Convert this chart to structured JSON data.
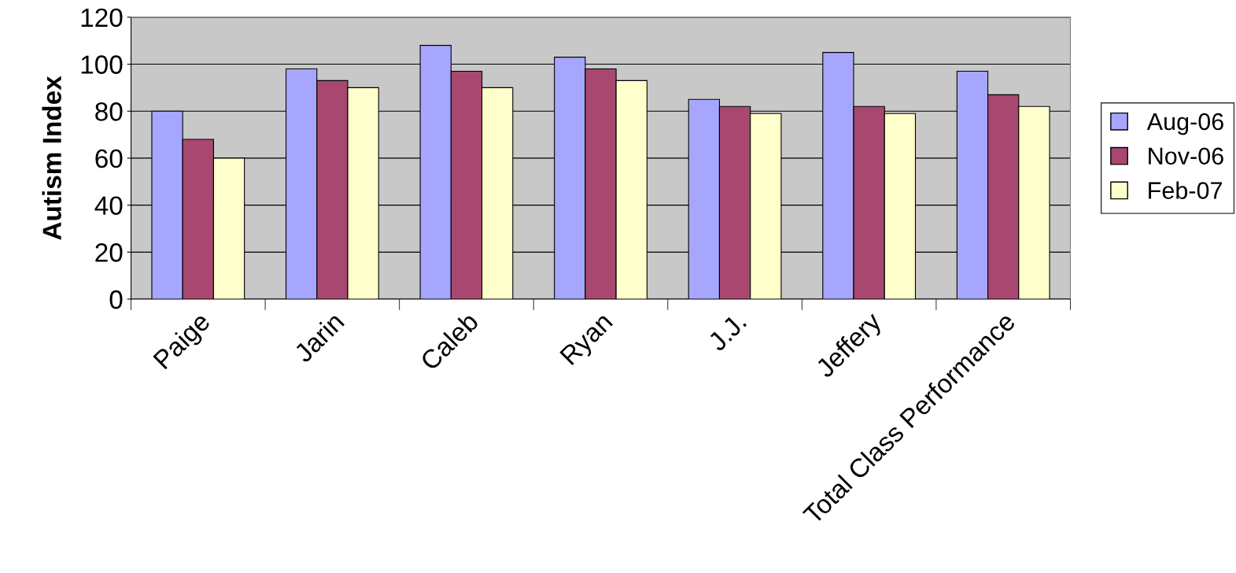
{
  "chart_data": {
    "type": "bar",
    "ylabel": "Autism Index",
    "categories": [
      "Paige",
      "Jarin",
      "Caleb",
      "Ryan",
      "J.J.",
      "Jeffery",
      "Total Class Performance"
    ],
    "series": [
      {
        "name": "Aug-06",
        "color": "#a6a6ff",
        "values": [
          80,
          98,
          108,
          103,
          85,
          105,
          97
        ]
      },
      {
        "name": "Nov-06",
        "color": "#a8476f",
        "values": [
          68,
          93,
          97,
          98,
          82,
          82,
          87
        ]
      },
      {
        "name": "Feb-07",
        "color": "#ffffcc",
        "values": [
          60,
          90,
          90,
          93,
          79,
          79,
          82
        ]
      }
    ],
    "ylim": [
      0,
      120
    ],
    "yticks": [
      0,
      20,
      40,
      60,
      80,
      100,
      120
    ],
    "grid": "y",
    "legend": "right"
  }
}
